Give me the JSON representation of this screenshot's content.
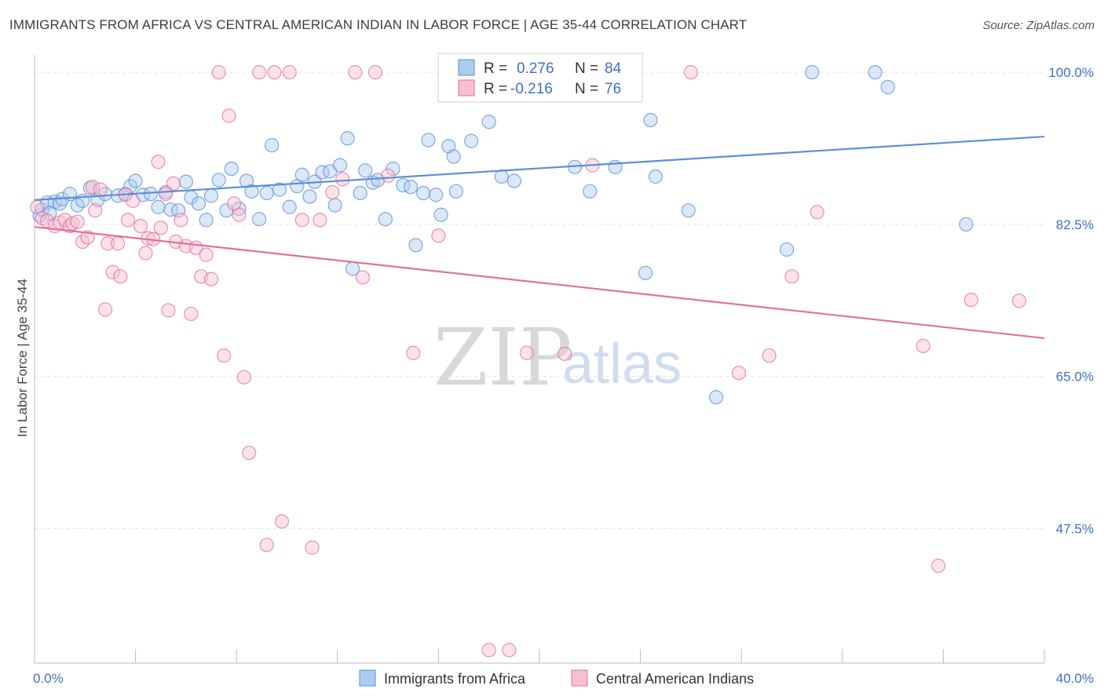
{
  "title": "IMMIGRANTS FROM AFRICA VS CENTRAL AMERICAN INDIAN IN LABOR FORCE | AGE 35-44 CORRELATION CHART",
  "source": "Source: ZipAtlas.com",
  "watermark": {
    "zip": "ZIP",
    "atlas": "atlas"
  },
  "legend": {
    "r_label": "R =",
    "n_label": "N =",
    "rows": [
      {
        "r": "0.276",
        "n": "84",
        "color": "#5b8fd6",
        "fill": "#aecbf0"
      },
      {
        "r": "-0.216",
        "n": "76",
        "color": "#e0719a",
        "fill": "#f7bfd2"
      }
    ]
  },
  "chart_data": {
    "type": "scatter",
    "ylabel": "In Labor Force | Age 35-44",
    "xlim": [
      0,
      40
    ],
    "ylim": [
      32,
      102
    ],
    "x_tick_labels": [
      "0.0%",
      "40.0%"
    ],
    "y_ticks": [
      {
        "value": 100,
        "label": "100.0%"
      },
      {
        "value": 82.5,
        "label": "82.5%"
      },
      {
        "value": 65,
        "label": "65.0%"
      },
      {
        "value": 47.5,
        "label": "47.5%"
      }
    ],
    "grid": true,
    "series": [
      {
        "name": "Immigrants from Africa",
        "color": "#5b8fd6",
        "fill": "#aecbf0",
        "trend": {
          "x": [
            0,
            40
          ],
          "y": [
            85.3,
            92.6
          ]
        },
        "points": [
          [
            0.2,
            83.5
          ],
          [
            0.3,
            84.2
          ],
          [
            0.5,
            85.0
          ],
          [
            0.6,
            83.8
          ],
          [
            0.8,
            85.1
          ],
          [
            1.0,
            84.9
          ],
          [
            1.1,
            85.4
          ],
          [
            1.4,
            86.0
          ],
          [
            1.7,
            84.7
          ],
          [
            1.9,
            85.2
          ],
          [
            2.2,
            86.7
          ],
          [
            2.5,
            85.3
          ],
          [
            2.8,
            86.0
          ],
          [
            3.3,
            85.8
          ],
          [
            3.6,
            86.0
          ],
          [
            3.8,
            86.9
          ],
          [
            4.0,
            87.5
          ],
          [
            4.3,
            85.9
          ],
          [
            4.6,
            86.0
          ],
          [
            4.9,
            84.5
          ],
          [
            5.2,
            86.2
          ],
          [
            5.4,
            84.2
          ],
          [
            5.7,
            84.1
          ],
          [
            6.0,
            87.4
          ],
          [
            6.2,
            85.6
          ],
          [
            6.5,
            84.9
          ],
          [
            6.8,
            83.0
          ],
          [
            7.0,
            85.8
          ],
          [
            7.3,
            87.6
          ],
          [
            7.6,
            84.1
          ],
          [
            7.8,
            88.9
          ],
          [
            8.1,
            84.3
          ],
          [
            8.4,
            87.5
          ],
          [
            8.6,
            86.3
          ],
          [
            8.9,
            83.1
          ],
          [
            9.2,
            86.1
          ],
          [
            9.4,
            91.6
          ],
          [
            9.7,
            86.5
          ],
          [
            10.1,
            84.5
          ],
          [
            10.4,
            86.9
          ],
          [
            10.6,
            88.2
          ],
          [
            10.9,
            85.7
          ],
          [
            11.1,
            87.4
          ],
          [
            11.4,
            88.5
          ],
          [
            11.7,
            88.6
          ],
          [
            11.9,
            84.7
          ],
          [
            12.1,
            89.3
          ],
          [
            12.4,
            92.4
          ],
          [
            12.6,
            77.4
          ],
          [
            12.9,
            86.1
          ],
          [
            13.1,
            88.7
          ],
          [
            13.4,
            87.3
          ],
          [
            13.6,
            87.6
          ],
          [
            13.9,
            83.1
          ],
          [
            14.2,
            88.9
          ],
          [
            14.6,
            87.0
          ],
          [
            14.9,
            86.8
          ],
          [
            15.1,
            80.1
          ],
          [
            15.4,
            86.1
          ],
          [
            15.6,
            92.2
          ],
          [
            15.9,
            85.9
          ],
          [
            16.1,
            83.6
          ],
          [
            16.4,
            91.5
          ],
          [
            16.7,
            86.3
          ],
          [
            16.6,
            90.3
          ],
          [
            17.3,
            92.1
          ],
          [
            18.0,
            94.3
          ],
          [
            18.5,
            88.0
          ],
          [
            19.0,
            87.5
          ],
          [
            20.3,
            100.0
          ],
          [
            21.4,
            89.1
          ],
          [
            22.0,
            86.3
          ],
          [
            23.0,
            89.1
          ],
          [
            23.8,
            100.0
          ],
          [
            24.2,
            76.9
          ],
          [
            24.4,
            94.5
          ],
          [
            24.6,
            88.0
          ],
          [
            25.9,
            84.1
          ],
          [
            27.0,
            62.6
          ],
          [
            29.8,
            79.6
          ],
          [
            30.8,
            100.0
          ],
          [
            33.3,
            100.0
          ],
          [
            33.8,
            98.3
          ],
          [
            36.9,
            82.5
          ]
        ]
      },
      {
        "name": "Central American Indians",
        "color": "#e0719a",
        "fill": "#f7bfd2",
        "trend": {
          "x": [
            0,
            40
          ],
          "y": [
            82.2,
            69.4
          ]
        },
        "points": [
          [
            0.1,
            84.5
          ],
          [
            0.3,
            83.2
          ],
          [
            0.5,
            82.9
          ],
          [
            0.8,
            82.3
          ],
          [
            1.0,
            82.7
          ],
          [
            1.2,
            83.0
          ],
          [
            1.4,
            82.3
          ],
          [
            1.5,
            82.6
          ],
          [
            1.7,
            82.8
          ],
          [
            1.9,
            80.5
          ],
          [
            2.1,
            81.0
          ],
          [
            2.3,
            86.8
          ],
          [
            2.4,
            84.1
          ],
          [
            2.6,
            86.5
          ],
          [
            2.8,
            72.7
          ],
          [
            2.9,
            80.3
          ],
          [
            3.1,
            77.0
          ],
          [
            3.3,
            80.3
          ],
          [
            3.4,
            76.5
          ],
          [
            3.6,
            85.9
          ],
          [
            3.7,
            83.0
          ],
          [
            3.9,
            85.2
          ],
          [
            4.2,
            82.3
          ],
          [
            4.4,
            79.2
          ],
          [
            4.5,
            80.9
          ],
          [
            4.7,
            80.8
          ],
          [
            4.9,
            89.7
          ],
          [
            5.0,
            82.1
          ],
          [
            5.2,
            86.0
          ],
          [
            5.3,
            72.6
          ],
          [
            5.5,
            87.2
          ],
          [
            5.6,
            80.5
          ],
          [
            5.8,
            83.0
          ],
          [
            6.0,
            80.0
          ],
          [
            6.2,
            72.2
          ],
          [
            6.4,
            79.8
          ],
          [
            6.6,
            76.5
          ],
          [
            6.8,
            79.0
          ],
          [
            7.0,
            76.2
          ],
          [
            7.3,
            100.0
          ],
          [
            7.5,
            67.4
          ],
          [
            7.7,
            95.0
          ],
          [
            7.9,
            84.9
          ],
          [
            8.1,
            83.6
          ],
          [
            8.3,
            64.9
          ],
          [
            8.5,
            56.2
          ],
          [
            8.9,
            100.0
          ],
          [
            9.2,
            45.6
          ],
          [
            9.5,
            100.0
          ],
          [
            9.8,
            48.3
          ],
          [
            10.1,
            100.0
          ],
          [
            10.6,
            83.0
          ],
          [
            11.0,
            45.3
          ],
          [
            11.3,
            83.0
          ],
          [
            11.8,
            86.2
          ],
          [
            12.2,
            87.7
          ],
          [
            12.7,
            100.0
          ],
          [
            13.0,
            76.4
          ],
          [
            13.5,
            100.0
          ],
          [
            14.0,
            88.1
          ],
          [
            15.0,
            67.7
          ],
          [
            16.0,
            81.2
          ],
          [
            18.0,
            33.5
          ],
          [
            18.8,
            33.5
          ],
          [
            19.5,
            67.7
          ],
          [
            21.0,
            67.6
          ],
          [
            22.1,
            89.3
          ],
          [
            26.0,
            100.0
          ],
          [
            27.9,
            65.4
          ],
          [
            29.1,
            67.4
          ],
          [
            30.0,
            76.5
          ],
          [
            31.0,
            83.9
          ],
          [
            35.2,
            68.5
          ],
          [
            35.8,
            43.2
          ],
          [
            37.1,
            73.8
          ],
          [
            39.0,
            73.7
          ]
        ]
      }
    ]
  }
}
